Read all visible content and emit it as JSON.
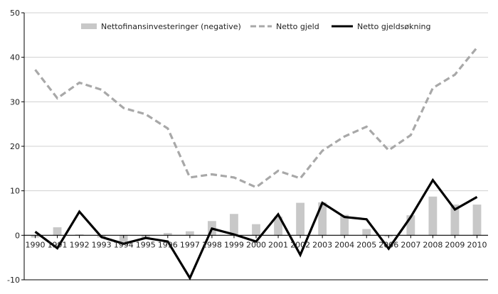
{
  "chart_data": {
    "type": "bar+line",
    "title": "",
    "xlabel": "",
    "ylabel": "",
    "ylim": [
      -10,
      50
    ],
    "yticks": [
      -10,
      0,
      10,
      20,
      30,
      40,
      50
    ],
    "grid": true,
    "legend_position": "top",
    "categories": [
      "1990",
      "1991",
      "1992",
      "1993",
      "1994",
      "1995",
      "1996",
      "1997",
      "1998",
      "1999",
      "2000",
      "2001",
      "2002",
      "2003",
      "2004",
      "2005",
      "2006",
      "2007",
      "2008",
      "2009",
      "2010"
    ],
    "series": [
      {
        "name": "Nettofinansinvesteringer (negative)",
        "kind": "bar",
        "color": "#c8c8c8",
        "values": [
          -0.5,
          1.8,
          0.2,
          -0.5,
          -1.5,
          -0.6,
          0.5,
          0.9,
          3.2,
          4.8,
          2.5,
          4.2,
          7.3,
          7.4,
          4.6,
          1.4,
          -0.3,
          4.5,
          8.7,
          6.9,
          6.9
        ]
      },
      {
        "name": "Netto gjeld",
        "kind": "line",
        "style": "dashed",
        "color": "#a8a8a8",
        "values": [
          37.2,
          30.8,
          34.3,
          32.7,
          28.6,
          27.2,
          24.0,
          13.0,
          13.7,
          13.0,
          10.8,
          14.5,
          12.8,
          19.0,
          22.2,
          24.4,
          19.1,
          22.5,
          33.1,
          36.1,
          42.2
        ]
      },
      {
        "name": "Netto gjeldsøkning",
        "kind": "line",
        "style": "solid",
        "color": "#000000",
        "values": [
          0.8,
          -2.9,
          5.3,
          -0.4,
          -1.9,
          -0.6,
          -1.4,
          -9.6,
          1.5,
          0.2,
          -1.4,
          4.7,
          -4.4,
          7.3,
          4.1,
          3.6,
          -3.0,
          4.1,
          12.4,
          5.8,
          8.6
        ]
      }
    ]
  }
}
